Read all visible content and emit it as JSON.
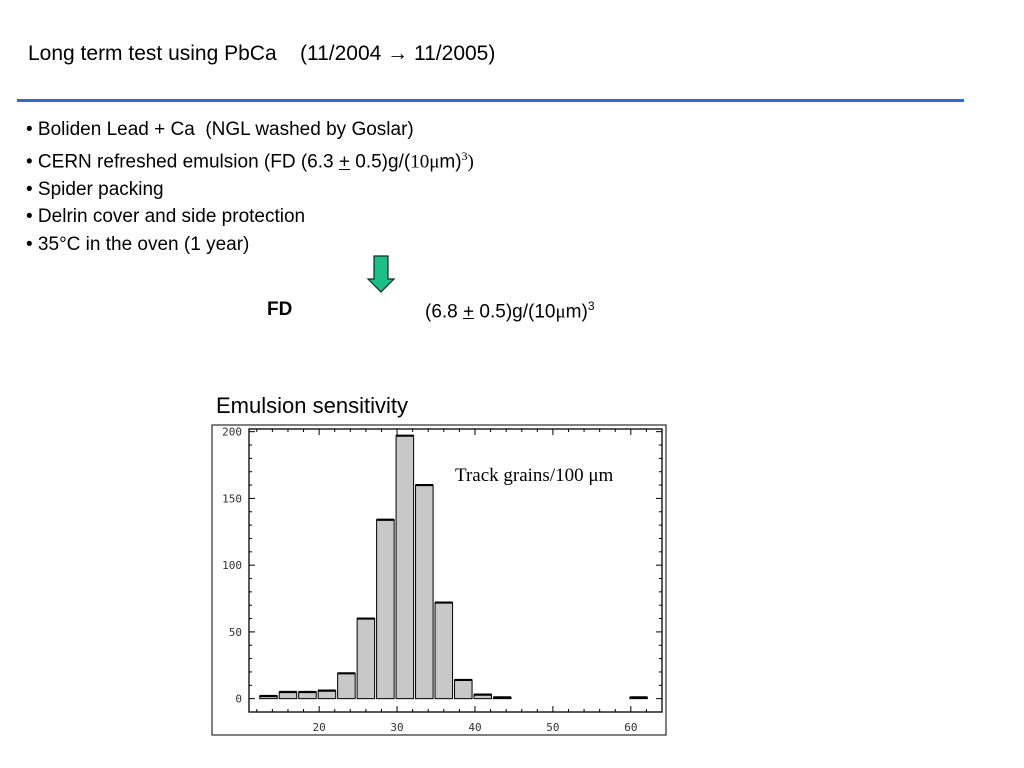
{
  "slide": {
    "title_main": "Long term test using PbCa",
    "title_dates": "(11/2004 ",
    "title_arrow": "→",
    "title_end": " 11/2005)",
    "bullets": [
      "• Boliden Lead + Ca  (NGL washed by Goslar)",
      "• Spider packing",
      "• Delrin cover and side protection",
      "• 35°C in the oven (1 year)"
    ],
    "cern_bullet": {
      "prefix": "• CERN refreshed emulsion (FD (6.3 ",
      "pm": "+",
      "mid": " 0.5)g/(",
      "ten": "10",
      "mu": "μ",
      "m": "m)",
      "exp": "3",
      "suffix": ")"
    },
    "arrow_icon": "down-arrow-icon",
    "arrow_color": "#1bc089",
    "fd": {
      "label": "FD",
      "value_prefix": "(6.8 ",
      "pm": "+",
      "value_mid": " 0.5)g/(10",
      "mu": "μ",
      "value_suffix": "m)",
      "exp": "3"
    },
    "rule_color": "#2a6fd0"
  },
  "chart_data": {
    "type": "bar",
    "title": "Emulsion sensitivity",
    "annotation": "Track grains/100 μm",
    "xlabel": "",
    "ylabel": "",
    "xlim": [
      11,
      64
    ],
    "ylim": [
      -10,
      202
    ],
    "xticks": [
      20,
      30,
      40,
      50,
      60
    ],
    "yticks": [
      0,
      50,
      100,
      150,
      200
    ],
    "bar_width": 2.25,
    "bar_color": "#c8c8c8",
    "bars": [
      {
        "x": 13.5,
        "value": 2
      },
      {
        "x": 16.0,
        "value": 5
      },
      {
        "x": 18.5,
        "value": 5
      },
      {
        "x": 21.0,
        "value": 6
      },
      {
        "x": 23.5,
        "value": 19
      },
      {
        "x": 26.0,
        "value": 60
      },
      {
        "x": 28.5,
        "value": 134
      },
      {
        "x": 31.0,
        "value": 197
      },
      {
        "x": 33.5,
        "value": 160
      },
      {
        "x": 36.0,
        "value": 72
      },
      {
        "x": 38.5,
        "value": 14
      },
      {
        "x": 41.0,
        "value": 3
      },
      {
        "x": 43.5,
        "value": 1
      },
      {
        "x": 61.0,
        "value": 1
      }
    ]
  }
}
